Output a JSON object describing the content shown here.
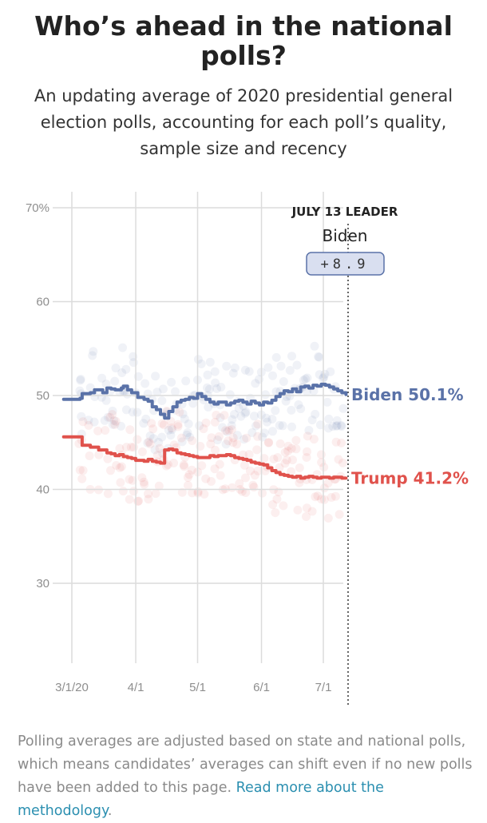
{
  "title": "Who’s ahead in the national polls?",
  "subtitle": "An updating average of 2020 presidential general election polls, accounting for each poll’s quality, sample size and recency",
  "footnote": {
    "text": "Polling averages are adjusted based on state and national polls, which means candidates’ averages can shift even if no new polls have been added to this page. ",
    "link_text": "Read more about the methodology",
    "end": "."
  },
  "leader": {
    "label": "JULY 13 LEADER",
    "name": "Biden",
    "margin": "+8.9"
  },
  "colors": {
    "biden": "#5a72a8",
    "trump": "#e0524c",
    "grid": "#dcdcdc"
  },
  "chart_data": {
    "type": "line",
    "title": "Who’s ahead in the national polls?",
    "xlabel": "",
    "ylabel": "",
    "x_range_days": [
      0,
      134
    ],
    "x_origin_date": "2020-02-29",
    "ylim": [
      20,
      72
    ],
    "y_ticks": [
      {
        "value": 30,
        "label": "30"
      },
      {
        "value": 40,
        "label": "40"
      },
      {
        "value": 50,
        "label": "50"
      },
      {
        "value": 60,
        "label": "60"
      },
      {
        "value": 70,
        "label": "70%"
      }
    ],
    "x_ticks": [
      {
        "day": 1,
        "label": "3/1/20"
      },
      {
        "day": 32,
        "label": "4/1"
      },
      {
        "day": 62,
        "label": "5/1"
      },
      {
        "day": 93,
        "label": "6/1"
      },
      {
        "day": 123,
        "label": "7/1"
      }
    ],
    "leader_day": 135,
    "series": [
      {
        "name": "Biden",
        "end_label": "Biden 50.1%",
        "days": [
          -3,
          5,
          6,
          10,
          12,
          16,
          18,
          20,
          22,
          25,
          26,
          28,
          30,
          33,
          36,
          38,
          40,
          42,
          44,
          46,
          48,
          50,
          52,
          54,
          56,
          58,
          60,
          62,
          64,
          66,
          68,
          70,
          72,
          74,
          76,
          78,
          80,
          82,
          84,
          86,
          88,
          90,
          92,
          94,
          96,
          98,
          100,
          102,
          104,
          106,
          108,
          110,
          112,
          114,
          116,
          118,
          120,
          122,
          124,
          126,
          128,
          130,
          132,
          134
        ],
        "values": [
          49.6,
          49.7,
          50.2,
          50.3,
          50.6,
          50.3,
          50.8,
          50.7,
          50.6,
          50.8,
          51.0,
          50.6,
          50.3,
          49.8,
          49.6,
          49.4,
          48.8,
          48.5,
          48.0,
          47.6,
          48.3,
          48.8,
          49.3,
          49.5,
          49.6,
          49.8,
          49.7,
          50.2,
          49.9,
          49.6,
          49.3,
          49.1,
          49.3,
          49.3,
          49.0,
          49.2,
          49.4,
          49.5,
          49.3,
          49.1,
          49.4,
          49.2,
          49.0,
          49.3,
          49.2,
          49.5,
          49.9,
          50.2,
          50.5,
          50.4,
          50.7,
          50.4,
          50.9,
          51.0,
          50.8,
          51.1,
          51.0,
          51.2,
          51.1,
          50.9,
          50.7,
          50.5,
          50.3,
          50.1
        ]
      },
      {
        "name": "Trump",
        "end_label": "Trump 41.2%",
        "days": [
          -3,
          5,
          6,
          10,
          14,
          18,
          20,
          22,
          24,
          26,
          28,
          30,
          32,
          34,
          36,
          38,
          40,
          42,
          44,
          46,
          48,
          50,
          52,
          54,
          56,
          58,
          60,
          62,
          64,
          66,
          68,
          70,
          72,
          74,
          76,
          78,
          80,
          82,
          84,
          86,
          88,
          90,
          92,
          94,
          96,
          98,
          100,
          102,
          104,
          106,
          108,
          110,
          112,
          114,
          116,
          118,
          120,
          122,
          124,
          126,
          128,
          130,
          132,
          134
        ],
        "values": [
          45.6,
          45.6,
          44.7,
          44.5,
          44.2,
          43.9,
          43.8,
          43.6,
          43.7,
          43.5,
          43.4,
          43.3,
          43.1,
          43.1,
          43.0,
          43.2,
          43.0,
          42.9,
          42.8,
          44.2,
          44.3,
          44.2,
          43.9,
          43.8,
          43.7,
          43.6,
          43.5,
          43.4,
          43.4,
          43.4,
          43.6,
          43.5,
          43.6,
          43.6,
          43.7,
          43.6,
          43.4,
          43.3,
          43.2,
          43.1,
          42.9,
          42.8,
          42.7,
          42.6,
          42.3,
          42.0,
          41.8,
          41.6,
          41.5,
          41.4,
          41.3,
          41.4,
          41.2,
          41.3,
          41.4,
          41.3,
          41.2,
          41.3,
          41.3,
          41.2,
          41.3,
          41.3,
          41.2,
          41.2
        ]
      }
    ]
  }
}
